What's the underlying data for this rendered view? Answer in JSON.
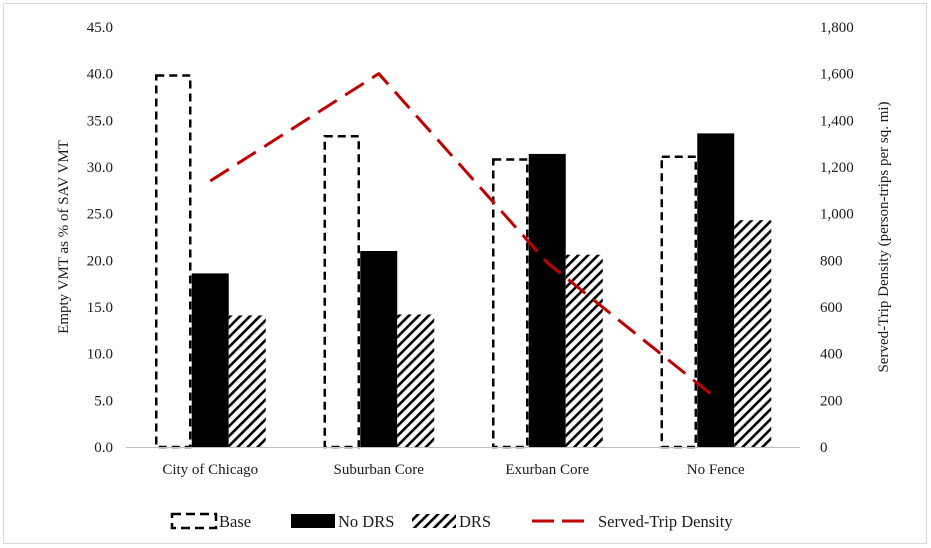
{
  "chart_data": {
    "type": "bar",
    "categories": [
      "City of Chicago",
      "Suburban Core",
      "Exurban Core",
      "No Fence"
    ],
    "series": [
      {
        "name": "Base",
        "type": "bar",
        "axis": "left",
        "style": "dashed-outline",
        "values": [
          39.8,
          33.3,
          30.8,
          31.1
        ]
      },
      {
        "name": "No DRS",
        "type": "bar",
        "axis": "left",
        "style": "solid",
        "color": "#000000",
        "values": [
          18.6,
          21.0,
          31.4,
          33.6
        ]
      },
      {
        "name": "DRS",
        "type": "bar",
        "axis": "left",
        "style": "diagonal-hatch",
        "values": [
          14.1,
          14.2,
          20.6,
          24.3
        ]
      },
      {
        "name": "Served-Trip Density",
        "type": "line",
        "axis": "right",
        "style": "long-dash",
        "color": "#c00000",
        "values": [
          1140,
          1600,
          790,
          210
        ]
      }
    ],
    "ylabel": "Empty VMT as % of SAV VMT",
    "y2label": "Served-Trip Density (person-trips per sq. mi)",
    "ylim": [
      0,
      45
    ],
    "y2lim": [
      0,
      1800
    ],
    "y_ticks": [
      "0.0",
      "5.0",
      "10.0",
      "15.0",
      "20.0",
      "25.0",
      "30.0",
      "35.0",
      "40.0",
      "45.0"
    ],
    "y2_ticks": [
      "0",
      "200",
      "400",
      "600",
      "800",
      "1,000",
      "1,200",
      "1,400",
      "1,600",
      "1,800"
    ],
    "grid": false,
    "legend_position": "bottom"
  }
}
